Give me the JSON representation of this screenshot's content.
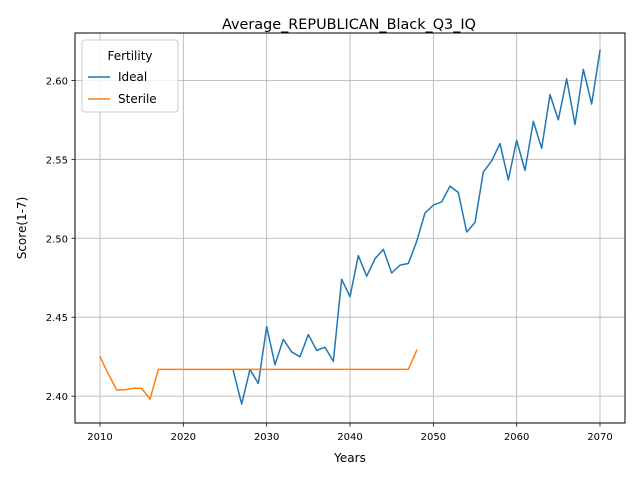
{
  "chart_data": {
    "type": "line",
    "title": "Average_REPUBLICAN_Black_Q3_IQ",
    "xlabel": "Years",
    "ylabel": "Score(1-7)",
    "xlim": [
      2007,
      2073
    ],
    "ylim": [
      2.383,
      2.63
    ],
    "xticks": [
      2010,
      2020,
      2030,
      2040,
      2050,
      2060,
      2070
    ],
    "yticks": [
      2.4,
      2.45,
      2.5,
      2.55,
      2.6
    ],
    "ytick_labels": [
      "2.40",
      "2.45",
      "2.50",
      "2.55",
      "2.60"
    ],
    "grid": true,
    "legend": {
      "title": "Fertility",
      "position": "top-left"
    },
    "series": [
      {
        "name": "Ideal",
        "color": "#1f77b4",
        "x": [
          2026,
          2027,
          2028,
          2029,
          2030,
          2031,
          2032,
          2033,
          2034,
          2035,
          2036,
          2037,
          2038,
          2039,
          2040,
          2041,
          2042,
          2043,
          2044,
          2045,
          2046,
          2047,
          2048,
          2049,
          2050,
          2051,
          2052,
          2053,
          2054,
          2055,
          2056,
          2057,
          2058,
          2059,
          2060,
          2061,
          2062,
          2063,
          2064,
          2065,
          2066,
          2067,
          2068,
          2069,
          2070
        ],
        "y": [
          2.416,
          2.395,
          2.417,
          2.408,
          2.444,
          2.42,
          2.436,
          2.428,
          2.425,
          2.439,
          2.429,
          2.431,
          2.422,
          2.474,
          2.463,
          2.489,
          2.476,
          2.487,
          2.493,
          2.478,
          2.483,
          2.484,
          2.498,
          2.516,
          2.521,
          2.523,
          2.533,
          2.529,
          2.504,
          2.51,
          2.542,
          2.549,
          2.56,
          2.537,
          2.562,
          2.543,
          2.574,
          2.557,
          2.591,
          2.575,
          2.601,
          2.572,
          2.607,
          2.585,
          2.619
        ]
      },
      {
        "name": "Sterile",
        "color": "#ff7f0e",
        "x": [
          2010,
          2011,
          2012,
          2013,
          2014,
          2015,
          2016,
          2017,
          2018,
          2019,
          2020,
          2021,
          2022,
          2023,
          2024,
          2025,
          2026,
          2027,
          2028,
          2029,
          2030,
          2031,
          2032,
          2033,
          2034,
          2035,
          2036,
          2037,
          2038,
          2039,
          2040,
          2041,
          2042,
          2043,
          2044,
          2045,
          2046,
          2047,
          2048
        ],
        "y": [
          2.425,
          2.414,
          2.404,
          2.404,
          2.405,
          2.405,
          2.398,
          2.417,
          2.417,
          2.417,
          2.417,
          2.417,
          2.417,
          2.417,
          2.417,
          2.417,
          2.417,
          2.417,
          2.417,
          2.417,
          2.417,
          2.417,
          2.417,
          2.417,
          2.417,
          2.417,
          2.417,
          2.417,
          2.417,
          2.417,
          2.417,
          2.417,
          2.417,
          2.417,
          2.417,
          2.417,
          2.417,
          2.417,
          2.429
        ]
      }
    ]
  }
}
